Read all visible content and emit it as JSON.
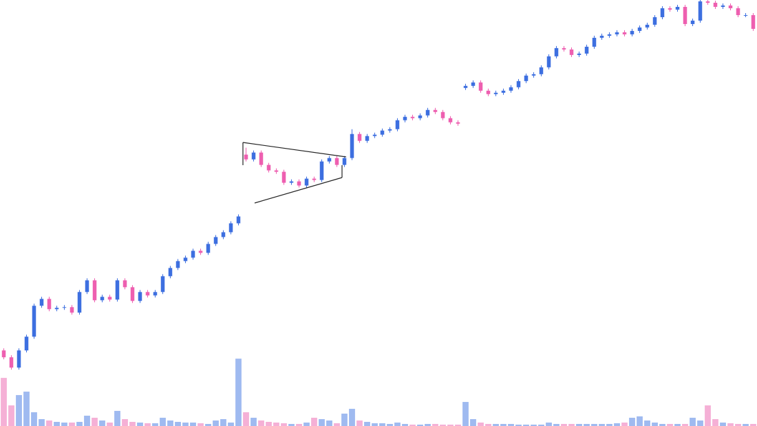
{
  "chart_data": {
    "type": "candlestick",
    "ylim": [
      0,
      620
    ],
    "volume_ylim": [
      0,
      620
    ],
    "up_color": "#3d6fe0",
    "down_color": "#ee5fb0",
    "volume_up_color": "#9fbaf0",
    "volume_down_color": "#f5b0d6",
    "open": [
      110,
      100,
      85,
      110,
      130,
      175,
      185,
      170,
      172,
      173,
      165,
      195,
      212,
      183,
      188,
      184,
      212,
      202,
      182,
      195,
      190,
      195,
      218,
      230,
      240,
      245,
      255,
      252,
      265,
      275,
      282,
      295,
      395,
      388,
      398,
      380,
      372,
      370,
      354,
      356,
      350,
      360,
      358,
      385,
      390,
      380,
      390,
      425,
      415,
      422,
      424,
      430,
      432,
      445,
      450,
      448,
      452,
      460,
      457,
      448,
      442,
      492,
      495,
      500,
      488,
      483,
      485,
      488,
      493,
      502,
      510,
      512,
      522,
      538,
      550,
      548,
      540,
      542,
      552,
      565,
      568,
      570,
      573,
      570,
      575,
      580,
      584,
      595,
      608,
      606,
      610,
      585,
      590,
      618,
      616,
      610,
      612,
      608,
      598,
      598
    ],
    "high": [
      113,
      103,
      113,
      133,
      178,
      188,
      188,
      175,
      176,
      176,
      198,
      215,
      215,
      191,
      191,
      215,
      215,
      205,
      198,
      198,
      198,
      221,
      233,
      243,
      248,
      258,
      258,
      268,
      278,
      285,
      298,
      308,
      405,
      401,
      401,
      383,
      375,
      373,
      359,
      359,
      363,
      363,
      388,
      393,
      393,
      393,
      432,
      428,
      425,
      427,
      433,
      435,
      448,
      453,
      453,
      455,
      463,
      463,
      460,
      451,
      445,
      498,
      503,
      503,
      491,
      488,
      491,
      496,
      505,
      513,
      515,
      525,
      541,
      553,
      553,
      551,
      545,
      555,
      568,
      571,
      573,
      576,
      576,
      578,
      583,
      587,
      598,
      611,
      611,
      613,
      613,
      593,
      620,
      620,
      619,
      615,
      615,
      611,
      601,
      601
    ],
    "low": [
      97,
      82,
      82,
      107,
      127,
      172,
      167,
      167,
      169,
      162,
      162,
      192,
      180,
      180,
      181,
      181,
      199,
      179,
      179,
      187,
      187,
      192,
      215,
      227,
      237,
      242,
      249,
      249,
      262,
      272,
      279,
      292,
      385,
      385,
      377,
      369,
      367,
      351,
      351,
      347,
      347,
      355,
      355,
      382,
      377,
      377,
      387,
      412,
      412,
      419,
      421,
      427,
      429,
      442,
      445,
      445,
      449,
      454,
      445,
      439,
      437,
      489,
      492,
      485,
      480,
      480,
      482,
      485,
      490,
      499,
      507,
      509,
      519,
      535,
      545,
      537,
      537,
      539,
      549,
      562,
      565,
      567,
      567,
      567,
      572,
      577,
      581,
      592,
      603,
      603,
      582,
      582,
      587,
      613,
      607,
      607,
      605,
      595,
      595,
      575
    ],
    "close": [
      100,
      85,
      110,
      130,
      175,
      185,
      170,
      172,
      173,
      165,
      195,
      212,
      183,
      188,
      184,
      212,
      202,
      182,
      195,
      190,
      195,
      218,
      230,
      240,
      245,
      255,
      252,
      265,
      275,
      282,
      295,
      305,
      388,
      398,
      380,
      372,
      370,
      354,
      356,
      350,
      360,
      358,
      385,
      390,
      380,
      390,
      425,
      415,
      422,
      424,
      430,
      432,
      445,
      450,
      448,
      452,
      460,
      457,
      448,
      442,
      440,
      495,
      500,
      488,
      483,
      485,
      488,
      493,
      502,
      510,
      512,
      522,
      538,
      550,
      548,
      540,
      542,
      552,
      565,
      568,
      570,
      573,
      570,
      575,
      580,
      584,
      595,
      608,
      606,
      610,
      585,
      590,
      618,
      616,
      610,
      612,
      608,
      598,
      598,
      578
    ],
    "volume": [
      70,
      30,
      45,
      50,
      20,
      10,
      8,
      6,
      5,
      5,
      6,
      15,
      12,
      8,
      5,
      22,
      10,
      6,
      5,
      4,
      4,
      12,
      8,
      6,
      5,
      5,
      4,
      3,
      8,
      10,
      5,
      98,
      20,
      12,
      8,
      6,
      5,
      4,
      3,
      3,
      5,
      12,
      10,
      8,
      4,
      18,
      25,
      8,
      6,
      4,
      4,
      3,
      5,
      3,
      2,
      2,
      3,
      3,
      2,
      2,
      2,
      35,
      10,
      5,
      3,
      3,
      3,
      3,
      2,
      2,
      2,
      2,
      5,
      3,
      3,
      3,
      3,
      3,
      3,
      3,
      3,
      4,
      5,
      12,
      14,
      8,
      5,
      3,
      3,
      3,
      3,
      12,
      8,
      30,
      10,
      5,
      4,
      3,
      3,
      3
    ]
  }
}
